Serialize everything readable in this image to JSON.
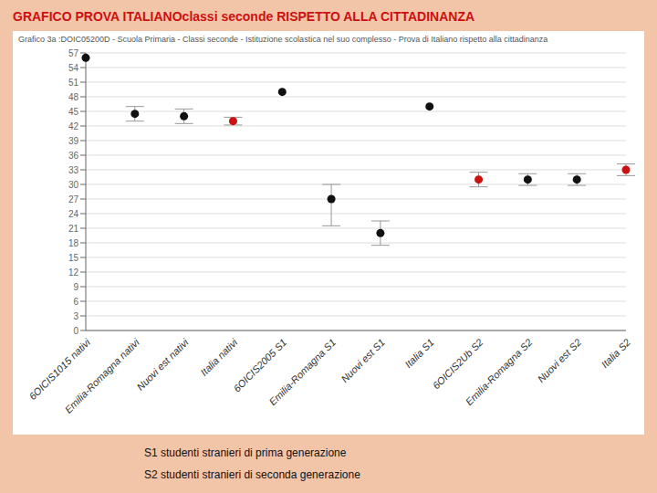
{
  "chart_data": {
    "type": "scatter",
    "title": "GRAFICO PROVA ITALIANOclassi seconde RISPETTO ALLA CITTADINANZA",
    "subtitle": "Grafico 3a :DOIC05200D - Scuola Primaria - Classi seconde - Istituzione scolastica nel suo complesso - Prova di Italiano rispetto alla  cittadinanza",
    "annotations": [
      "S1 studenti stranieri di prima generazione",
      "S2 studenti stranieri di seconda generazione"
    ],
    "categories": [
      "6OICIS1015 nativi",
      "Emilia-Romagna nativi",
      "Nuovi est nativi",
      "Italia nativi",
      "6OICIS2005 S1",
      "Emilia-Romagna S1",
      "Nuovi est S1",
      "Italia S1",
      "6OICIS2Ub S2",
      "Emilia-Romagna S2",
      "Nuovi est S2",
      "Italia S2"
    ],
    "values": [
      56,
      44.5,
      44,
      43,
      49,
      27,
      20,
      46,
      31,
      31,
      31,
      33
    ],
    "errors_low": [
      0,
      1.5,
      1.5,
      0.8,
      0,
      5.5,
      2.5,
      0,
      1.5,
      1.2,
      1.2,
      1.2
    ],
    "errors_high": [
      0,
      1.5,
      1.5,
      0.8,
      0,
      3.0,
      2.5,
      0,
      1.5,
      1.2,
      1.2,
      1.2
    ],
    "colors": [
      "#111111",
      "#111111",
      "#111111",
      "#cc1111",
      "#111111",
      "#111111",
      "#111111",
      "#111111",
      "#cc1111",
      "#111111",
      "#111111",
      "#cc1111"
    ],
    "marker": "circle",
    "ylim": [
      0,
      57
    ],
    "yticks": [
      0,
      3,
      6,
      9,
      12,
      15,
      18,
      21,
      24,
      27,
      30,
      33,
      36,
      39,
      42,
      45,
      48,
      51,
      54,
      57
    ],
    "grid": true
  }
}
